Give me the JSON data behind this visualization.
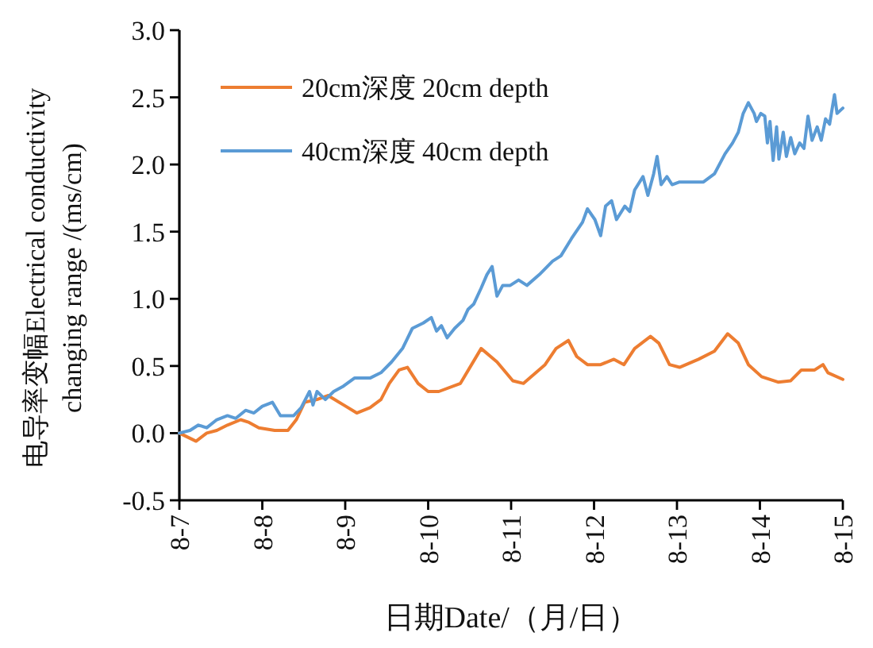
{
  "chart_data": {
    "type": "line",
    "xlabel": "日期Date/（月/日）",
    "ylabel": "电导率变幅Electrical conductivity\nchanging range /(ms/cm)",
    "series": [
      {
        "name": "20cm深度 20cm depth",
        "color": "#ed7d31",
        "x": [
          "--08-07T00:00",
          "--08-07T04:50",
          "--08-07T07:55",
          "--08-07T10:50",
          "--08-07T13:55",
          "--08-07T17:45",
          "--08-07T20:10",
          "--08-07T23:00",
          "--08-08T03:35",
          "--08-08T07:25",
          "--08-08T09:50",
          "--08-08T12:15",
          "--08-08T15:50",
          "--08-08T19:00",
          "--08-08T23:30",
          "--08-09T03:20",
          "--08-09T07:10",
          "--08-09T10:20",
          "--08-09T12:45",
          "--08-09T15:35",
          "--08-09T18:00",
          "--08-09T21:05",
          "--08-10T00:00",
          "--08-10T03:05",
          "--08-10T09:20",
          "--08-10T15:20",
          "--08-10T19:55",
          "--08-11T00:30",
          "--08-11T03:35",
          "--08-11T09:50",
          "--08-11T13:00",
          "--08-11T16:35",
          "--08-11T19:00",
          "--08-11T22:05",
          "--08-12T01:55",
          "--08-12T05:45",
          "--08-12T08:40",
          "--08-12T11:45",
          "--08-12T16:20",
          "--08-12T18:45",
          "--08-12T21:50",
          "--08-13T00:45",
          "--08-13T06:15",
          "--08-13T10:50",
          "--08-13T14:40",
          "--08-13T17:45",
          "--08-13T20:40",
          "--08-14T00:30",
          "--08-14T05:15",
          "--08-14T08:55",
          "--08-14T12:00",
          "--08-14T15:50",
          "--08-14T18:15",
          "--08-14T19:40",
          "--08-15T00:00"
        ],
        "values": [
          0,
          -0.06,
          0,
          0.02,
          0.06,
          0.1,
          0.08,
          0.04,
          0.02,
          0.02,
          0.1,
          0.23,
          0.25,
          0.28,
          0.21,
          0.15,
          0.19,
          0.25,
          0.37,
          0.47,
          0.49,
          0.37,
          0.31,
          0.31,
          0.37,
          0.63,
          0.53,
          0.39,
          0.37,
          0.51,
          0.63,
          0.69,
          0.57,
          0.51,
          0.51,
          0.55,
          0.51,
          0.63,
          0.72,
          0.67,
          0.51,
          0.49,
          0.55,
          0.61,
          0.74,
          0.67,
          0.51,
          0.42,
          0.38,
          0.39,
          0.47,
          0.47,
          0.51,
          0.45,
          0.4
        ]
      },
      {
        "name": "40cm深度 40cm depth",
        "color": "#5b9bd5",
        "x": [
          "--08-07T00:00",
          "--08-07T03:05",
          "--08-07T05:30",
          "--08-07T07:55",
          "--08-07T10:50",
          "--08-07T13:55",
          "--08-07T16:20",
          "--08-07T19:10",
          "--08-07T21:35",
          "--08-08T00:00",
          "--08-08T02:55",
          "--08-08T05:15",
          "--08-08T09:05",
          "--08-08T11:15",
          "--08-08T13:40",
          "--08-08T14:40",
          "--08-08T15:50",
          "--08-08T18:15",
          "--08-08T20:40",
          "--08-08T23:30",
          "--08-09T02:40",
          "--08-09T07:10",
          "--08-09T10:20",
          "--08-09T13:25",
          "--08-09T16:35",
          "--08-09T19:25",
          "--08-09T22:35",
          "--08-10T00:55",
          "--08-10T02:25",
          "--08-10T03:50",
          "--08-10T05:30",
          "--08-10T07:40",
          "--08-10T10:05",
          "--08-10T11:30",
          "--08-10T13:10",
          "--08-10T15:20",
          "--08-10T17:00",
          "--08-10T18:30",
          "--08-10T19:55",
          "--08-10T21:35",
          "--08-10T23:45",
          "--08-11T02:10",
          "--08-11T04:35",
          "--08-11T08:10",
          "--08-11T12:00",
          "--08-11T14:25",
          "--08-11T17:30",
          "--08-11T20:40",
          "--08-11T22:05",
          "--08-12T00:15",
          "--08-12T01:55",
          "--08-12T03:20",
          "--08-12T05:05",
          "--08-12T06:30",
          "--08-12T08:55",
          "--08-12T10:20",
          "--08-12T11:45",
          "--08-12T14:10",
          "--08-12T15:35",
          "--08-12T17:15",
          "--08-12T18:15",
          "--08-12T19:25",
          "--08-12T21:05",
          "--08-12T22:35",
          "--08-13T00:45",
          "--08-13T07:40",
          "--08-13T10:50",
          "--08-13T13:55",
          "--08-13T16:05",
          "--08-13T17:45",
          "--08-13T19:10",
          "--08-13T20:40",
          "--08-13T22:20",
          "--08-13T23:00",
          "--08-14T00:15",
          "--08-14T01:25",
          "--08-14T02:10",
          "--08-14T02:55",
          "--08-14T03:50",
          "--08-14T04:50",
          "--08-14T05:30",
          "--08-14T06:45",
          "--08-14T07:40",
          "--08-14T08:55",
          "--08-14T10:05",
          "--08-14T11:30",
          "--08-14T12:45",
          "--08-14T13:55",
          "--08-14T15:05",
          "--08-14T16:35",
          "--08-14T17:45",
          "--08-14T19:00",
          "--08-14T20:10",
          "--08-14T21:35",
          "--08-14T22:20",
          "--08-15T00:00"
        ],
        "values": [
          0,
          0.02,
          0.06,
          0.04,
          0.1,
          0.13,
          0.11,
          0.17,
          0.15,
          0.2,
          0.23,
          0.13,
          0.13,
          0.19,
          0.31,
          0.21,
          0.31,
          0.25,
          0.31,
          0.35,
          0.41,
          0.41,
          0.45,
          0.53,
          0.63,
          0.78,
          0.82,
          0.86,
          0.76,
          0.8,
          0.71,
          0.78,
          0.84,
          0.92,
          0.96,
          1.08,
          1.18,
          1.24,
          1.02,
          1.1,
          1.1,
          1.14,
          1.1,
          1.18,
          1.28,
          1.32,
          1.45,
          1.57,
          1.67,
          1.59,
          1.47,
          1.69,
          1.73,
          1.59,
          1.69,
          1.65,
          1.81,
          1.91,
          1.77,
          1.93,
          2.06,
          1.85,
          1.91,
          1.85,
          1.87,
          1.87,
          1.93,
          2.08,
          2.16,
          2.24,
          2.38,
          2.46,
          2.38,
          2.32,
          2.38,
          2.36,
          2.16,
          2.32,
          2.03,
          2.28,
          2.04,
          2.24,
          2.06,
          2.2,
          2.08,
          2.16,
          2.12,
          2.36,
          2.18,
          2.28,
          2.18,
          2.34,
          2.3,
          2.52,
          2.38,
          2.42
        ]
      }
    ],
    "xlim": [
      "--08-07",
      "--08-15"
    ],
    "xticks": [
      {
        "value": "--08-07",
        "label": "8-7"
      },
      {
        "value": "--08-08",
        "label": "8-8"
      },
      {
        "value": "--08-09",
        "label": "8-9"
      },
      {
        "value": "--08-10",
        "label": "8-10"
      },
      {
        "value": "--08-11",
        "label": "8-11"
      },
      {
        "value": "--08-12",
        "label": "8-12"
      },
      {
        "value": "--08-13",
        "label": "8-13"
      },
      {
        "value": "--08-14",
        "label": "8-14"
      },
      {
        "value": "--08-15",
        "label": "8-15"
      }
    ],
    "ylim": [
      -0.5,
      3
    ],
    "yticks": [
      {
        "value": -0.5,
        "label": "-0.5"
      },
      {
        "value": 0,
        "label": "0.0"
      },
      {
        "value": 0.5,
        "label": "0.5"
      },
      {
        "value": 1,
        "label": "1.0"
      },
      {
        "value": 1.5,
        "label": "1.5"
      },
      {
        "value": 2,
        "label": "2.0"
      },
      {
        "value": 2.5,
        "label": "2.5"
      },
      {
        "value": 3,
        "label": "3.0"
      }
    ],
    "legend": "top left",
    "line_style": "solid"
  }
}
